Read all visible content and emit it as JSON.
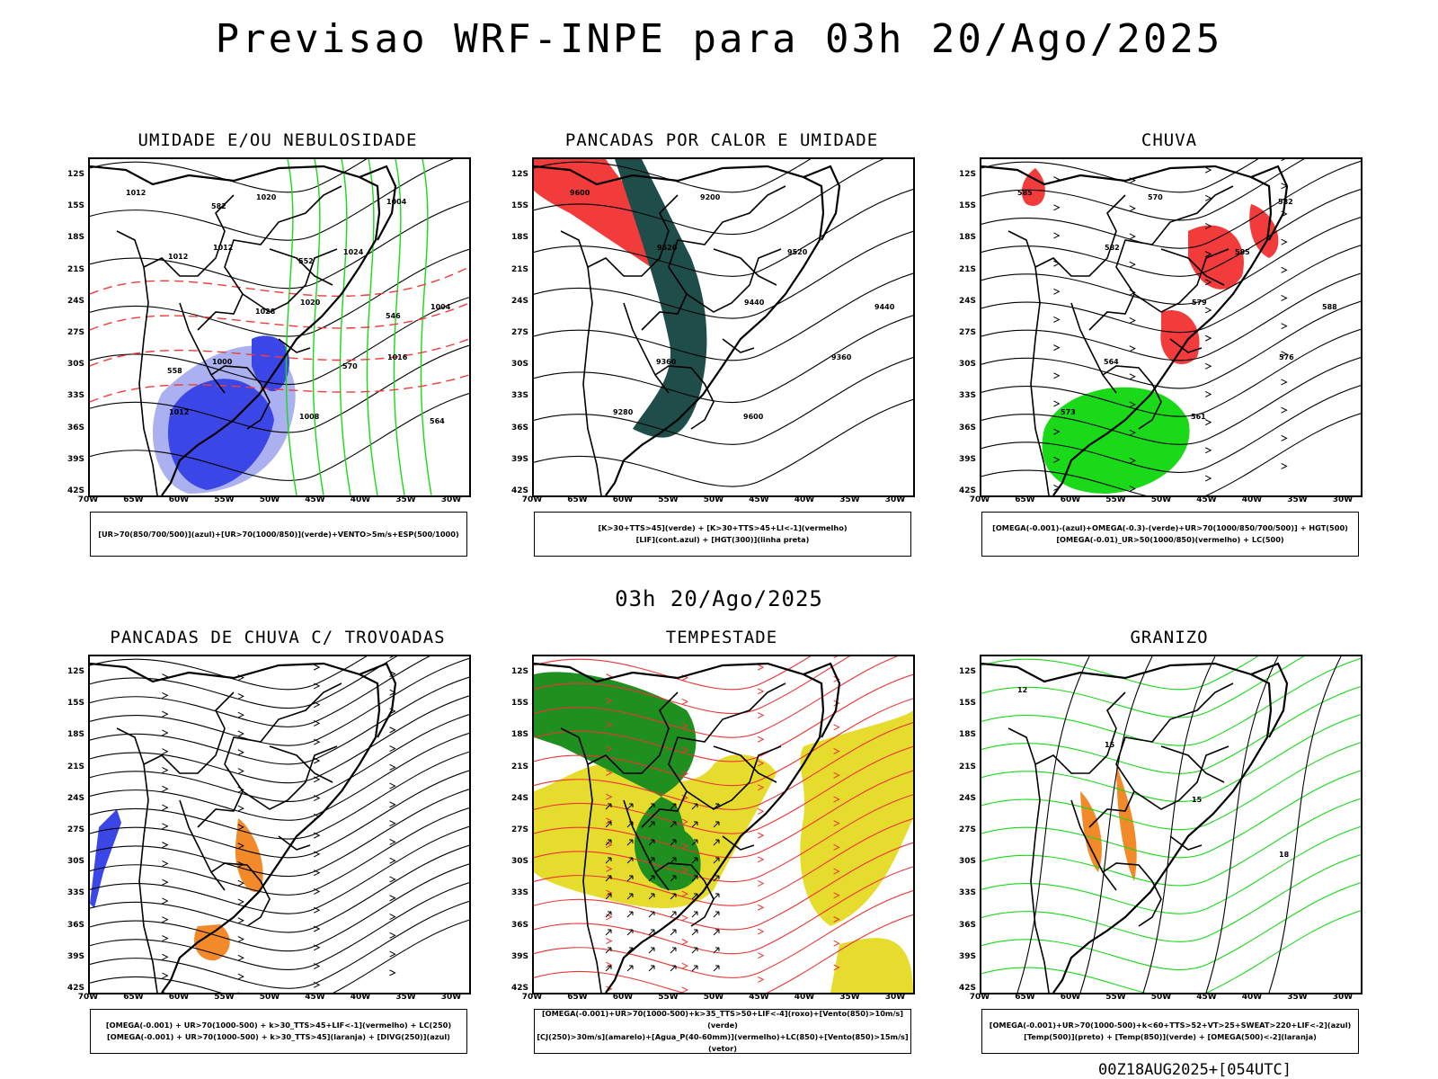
{
  "title": "Previsao WRF-INPE  para 03h 20/Ago/2025",
  "mid_title": "03h 20/Ago/2025",
  "footer": "00Z18AUG2025+[054UTC]",
  "lat_labels": [
    "12S",
    "15S",
    "18S",
    "21S",
    "24S",
    "27S",
    "30S",
    "33S",
    "36S",
    "39S",
    "42S"
  ],
  "lon_labels": [
    "70W",
    "65W",
    "60W",
    "55W",
    "50W",
    "45W",
    "40W",
    "35W",
    "30W"
  ],
  "panels": [
    {
      "title": "UMIDADE E/OU NEBULOSIDADE",
      "legend": [
        "[UR>70(850/700/500)](azul)+[UR>70(1000/850)](verde)+VENTO>5m/s+ESP(500/1000)"
      ],
      "contour_labels": [
        "1012",
        "1012",
        "1020",
        "1016",
        "1012",
        "1020",
        "1024",
        "1004",
        "1000",
        "1008",
        "1004",
        "1012",
        "1028",
        "570",
        "564",
        "582",
        "552",
        "546",
        "558"
      ]
    },
    {
      "title": "PANCADAS POR CALOR E UMIDADE",
      "legend": [
        "[K>30+TTS>45](verde) + [K>30+TTS>45+LI<-1](vermelho)",
        "[LIF](cont.azul) + [HGT(300)](linha preta)"
      ],
      "contour_labels": [
        "9600",
        "9520",
        "9440",
        "9360",
        "9280",
        "9200",
        "9520",
        "9440",
        "9360",
        "9600"
      ]
    },
    {
      "title": "CHUVA",
      "legend": [
        "[OMEGA(-0.001)-(azul)+OMEGA(-0.3)-(verde)+UR>70(1000/850/700/500)] + HGT(500)",
        "[OMEGA(-0.01)_UR>50(1000/850)(vermelho) + LC(500)"
      ],
      "contour_labels": [
        "585",
        "582",
        "579",
        "576",
        "573",
        "570",
        "585",
        "588",
        "564",
        "561",
        "582"
      ]
    },
    {
      "title": "PANCADAS DE CHUVA C/ TROVOADAS",
      "legend": [
        "[OMEGA(-0.001) + UR>70(1000-500) + k>30_TTS>45+LIF<-1](vermelho) + LC(250)",
        "[OMEGA(-0.001) + UR>70(1000-500) + k>30_TTS>45](laranja) + [DIVG(250)](azul)"
      ],
      "contour_labels": []
    },
    {
      "title": "TEMPESTADE",
      "legend": [
        "[OMEGA(-0.001)+UR>70(1000-500)+k>35_TTS>50+LIF<-4](roxo)+[Vento(850)>10m/s](verde)",
        "[CJ(250)>30m/s](amarelo)+[Agua_P(40-60mm)](vermelho)+LC(850)+[Vento(850)>15m/s](vetor)"
      ],
      "contour_labels": []
    },
    {
      "title": "GRANIZO",
      "legend": [
        "[OMEGA(-0.001)+UR>70(1000-500)+k<60+TTS>52+VT>25+SWEAT>220+LIF<-2](azul)",
        "[Temp(500)](preto) + [Temp(850)](verde) + [OMEGA(500)<-2](laranja)"
      ],
      "contour_labels": [
        "12",
        "15",
        "15",
        "18"
      ]
    }
  ],
  "colors": {
    "blue": "#3a47e6",
    "lightblue": "#aab0f0",
    "green": "#19d919",
    "red": "#f23b3b",
    "darkteal": "#1f4d4a",
    "orange": "#f28a2a",
    "yellow": "#e6dc2e",
    "darkgreen": "#1f8f1f"
  }
}
